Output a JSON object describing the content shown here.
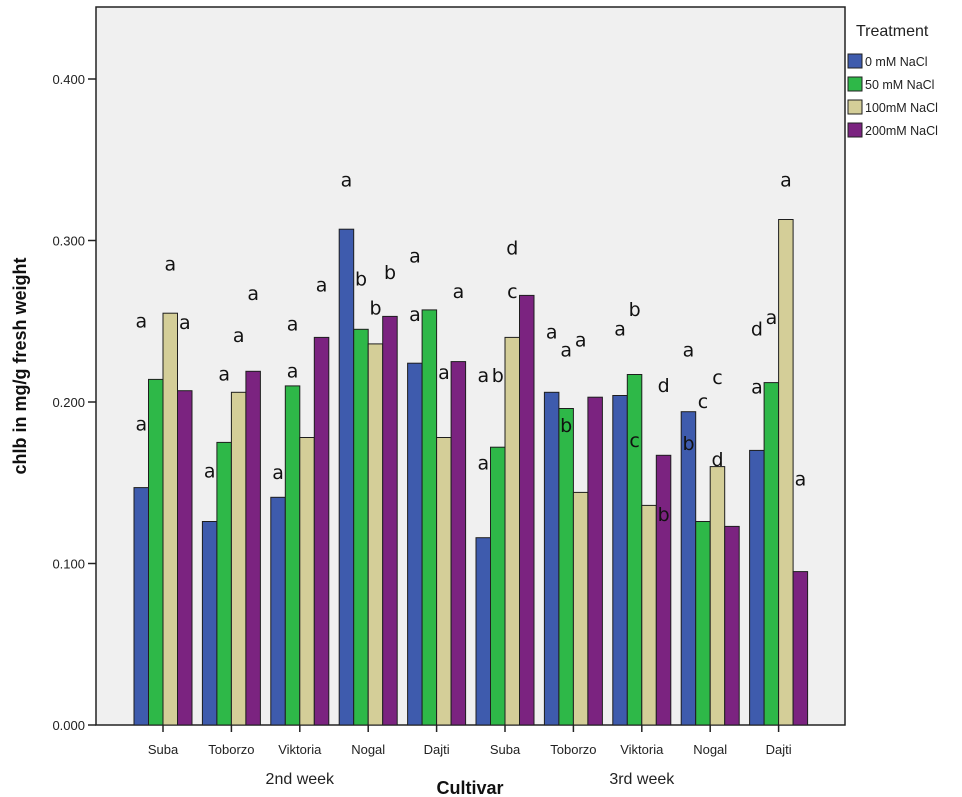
{
  "chart_data": {
    "type": "bar",
    "title": "",
    "xlabel": "Cultivar",
    "ylabel": "chlb in mg/g fresh weight",
    "ylim": [
      0,
      0.445
    ],
    "yticks": [
      "0.000",
      "0.100",
      "0.200",
      "0.300",
      "0.400"
    ],
    "ytick_values": [
      0,
      0.1,
      0.2,
      0.3,
      0.4
    ],
    "grid": false,
    "categories": [
      "Suba",
      "Toborzo",
      "Viktoria",
      "Nogal",
      "Dajti",
      "Suba",
      "Toborzo",
      "Viktoria",
      "Nogal",
      "Dajti"
    ],
    "groups": [
      {
        "label": "2nd week",
        "category_range": [
          0,
          4
        ]
      },
      {
        "label": "3rd week",
        "category_range": [
          5,
          9
        ]
      }
    ],
    "legend": {
      "title": "Treatment",
      "position": "top-right-outside"
    },
    "series": [
      {
        "name": "0 mM NaCl",
        "color": "#3e5bad",
        "values": [
          0.147,
          0.126,
          0.141,
          0.307,
          0.224,
          0.116,
          0.206,
          0.204,
          0.194,
          0.17
        ]
      },
      {
        "name": "50 mM NaCl",
        "color": "#2eb848",
        "values": [
          0.214,
          0.175,
          0.21,
          0.245,
          0.257,
          0.172,
          0.196,
          0.217,
          0.126,
          0.212
        ]
      },
      {
        "name": "100mM NaCl",
        "color": "#d4ce98",
        "values": [
          0.255,
          0.206,
          0.178,
          0.236,
          0.178,
          0.24,
          0.144,
          0.136,
          0.16,
          0.313
        ]
      },
      {
        "name": "200mM NaCl",
        "color": "#7b2380",
        "values": [
          0.207,
          0.219,
          0.24,
          0.253,
          0.225,
          0.266,
          0.203,
          0.167,
          0.123,
          0.095
        ]
      }
    ],
    "annotations": [
      {
        "text": "a",
        "category": 0,
        "series": 0,
        "value": 0.186
      },
      {
        "text": "a",
        "category": 0,
        "series": 0,
        "value": 0.25
      },
      {
        "text": "a",
        "category": 0,
        "series": 2,
        "value": 0.285
      },
      {
        "text": "a",
        "category": 0,
        "series": 3,
        "value": 0.249
      },
      {
        "text": "a",
        "category": 1,
        "series": 0,
        "value": 0.157
      },
      {
        "text": "a",
        "category": 1,
        "series": 1,
        "value": 0.217
      },
      {
        "text": "a",
        "category": 1,
        "series": 2,
        "value": 0.241
      },
      {
        "text": "a",
        "category": 1,
        "series": 3,
        "value": 0.267
      },
      {
        "text": "a",
        "category": 2,
        "series": 0,
        "value": 0.156
      },
      {
        "text": "a",
        "category": 2,
        "series": 1,
        "value": 0.219
      },
      {
        "text": "a",
        "category": 2,
        "series": 1,
        "value": 0.248
      },
      {
        "text": "a",
        "category": 2,
        "series": 3,
        "value": 0.272
      },
      {
        "text": "a",
        "category": 3,
        "series": 0,
        "value": 0.337
      },
      {
        "text": "b",
        "category": 3,
        "series": 1,
        "value": 0.276
      },
      {
        "text": "b",
        "category": 3,
        "series": 2,
        "value": 0.258
      },
      {
        "text": "b",
        "category": 3,
        "series": 3,
        "value": 0.28
      },
      {
        "text": "a",
        "category": 4,
        "series": 0,
        "value": 0.254
      },
      {
        "text": "a",
        "category": 4,
        "series": 0,
        "value": 0.29
      },
      {
        "text": "a",
        "category": 4,
        "series": 2,
        "value": 0.218
      },
      {
        "text": "a",
        "category": 4,
        "series": 3,
        "value": 0.268
      },
      {
        "text": "a",
        "category": 5,
        "series": 0,
        "value": 0.216
      },
      {
        "text": "a",
        "category": 5,
        "series": 0,
        "value": 0.162
      },
      {
        "text": "b",
        "category": 5,
        "series": 1,
        "value": 0.216
      },
      {
        "text": "c",
        "category": 5,
        "series": 2,
        "value": 0.268
      },
      {
        "text": "d",
        "category": 5,
        "series": 2,
        "value": 0.295
      },
      {
        "text": "a",
        "category": 6,
        "series": 0,
        "value": 0.243
      },
      {
        "text": "a",
        "category": 6,
        "series": 1,
        "value": 0.232
      },
      {
        "text": "b",
        "category": 6,
        "series": 1,
        "value": 0.185
      },
      {
        "text": "a",
        "category": 6,
        "series": 2,
        "value": 0.238
      },
      {
        "text": "a",
        "category": 7,
        "series": 0,
        "value": 0.245
      },
      {
        "text": "b",
        "category": 7,
        "series": 1,
        "value": 0.257
      },
      {
        "text": "c",
        "category": 7,
        "series": 1,
        "value": 0.176
      },
      {
        "text": "d",
        "category": 7,
        "series": 3,
        "value": 0.21
      },
      {
        "text": "b",
        "category": 7,
        "series": 3,
        "value": 0.13
      },
      {
        "text": "a",
        "category": 8,
        "series": 0,
        "value": 0.232
      },
      {
        "text": "b",
        "category": 8,
        "series": 0,
        "value": 0.174
      },
      {
        "text": "c",
        "category": 8,
        "series": 1,
        "value": 0.2
      },
      {
        "text": "c",
        "category": 8,
        "series": 2,
        "value": 0.215
      },
      {
        "text": "d",
        "category": 8,
        "series": 2,
        "value": 0.164
      },
      {
        "text": "d",
        "category": 9,
        "series": 0,
        "value": 0.245
      },
      {
        "text": "a",
        "category": 9,
        "series": 0,
        "value": 0.209
      },
      {
        "text": "a",
        "category": 9,
        "series": 1,
        "value": 0.252
      },
      {
        "text": "a",
        "category": 9,
        "series": 2,
        "value": 0.337
      },
      {
        "text": "a",
        "category": 9,
        "series": 3,
        "value": 0.152
      }
    ]
  }
}
